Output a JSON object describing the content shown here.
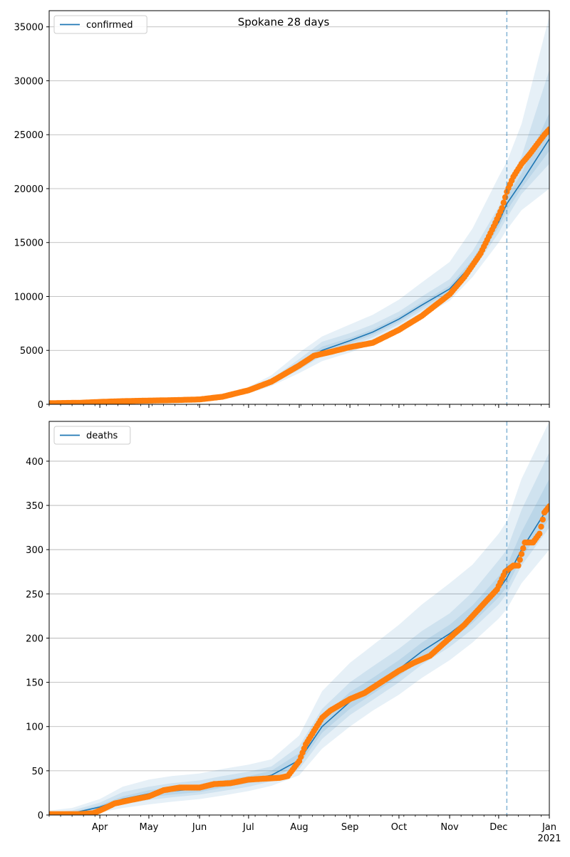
{
  "figure": {
    "title": "Spokane 28 days"
  },
  "colors": {
    "model": "#1f77b4",
    "observed": "#ff7f0e",
    "band": "#1f77b4",
    "grid": "#b0b0b0",
    "cutoff": "#1f77b4"
  },
  "chart_data": [
    {
      "type": "line",
      "legend": "confirmed",
      "legend_position": "top-left",
      "grid": "y",
      "ylim": [
        0,
        36500
      ],
      "yticks": [
        0,
        5000,
        10000,
        15000,
        20000,
        25000,
        30000,
        35000
      ],
      "xlim": [
        "2020-03-01",
        "2021-01-01"
      ],
      "xticks": [
        {
          "date": "2020-04-01",
          "label": "Apr"
        },
        {
          "date": "2020-05-01",
          "label": "May"
        },
        {
          "date": "2020-06-01",
          "label": "Jun"
        },
        {
          "date": "2020-07-01",
          "label": "Jul"
        },
        {
          "date": "2020-08-01",
          "label": "Aug"
        },
        {
          "date": "2020-09-01",
          "label": "Sep"
        },
        {
          "date": "2020-10-01",
          "label": "Oct"
        },
        {
          "date": "2020-11-01",
          "label": "Nov"
        },
        {
          "date": "2020-12-01",
          "label": "Dec"
        },
        {
          "date": "2021-01-01",
          "label": "Jan\n2021"
        }
      ],
      "cutoff_date": "2020-12-06",
      "model": {
        "dates": [
          "2020-03-01",
          "2020-03-15",
          "2020-04-01",
          "2020-04-15",
          "2020-05-01",
          "2020-05-15",
          "2020-06-01",
          "2020-06-15",
          "2020-07-01",
          "2020-07-15",
          "2020-08-01",
          "2020-08-15",
          "2020-09-01",
          "2020-09-15",
          "2020-10-01",
          "2020-10-15",
          "2020-11-01",
          "2020-11-15",
          "2020-12-01",
          "2020-12-06",
          "2020-12-15",
          "2021-01-01"
        ],
        "values": [
          80,
          100,
          180,
          250,
          320,
          370,
          430,
          650,
          1200,
          2000,
          3500,
          5000,
          5900,
          6700,
          7900,
          9200,
          10700,
          13000,
          16900,
          18600,
          20600,
          24600
        ],
        "bands": [
          {
            "lower": [
              60,
              70,
              150,
              210,
              260,
              300,
              350,
              550,
              1000,
              1700,
              2900,
              4000,
              4800,
              5600,
              6800,
              8100,
              9600,
              11800,
              15000,
              16200,
              18000,
              20000
            ],
            "upper": [
              110,
              140,
              230,
              320,
              410,
              470,
              560,
              850,
              1600,
              2700,
              4800,
              6300,
              7400,
              8300,
              9700,
              11300,
              13200,
              16300,
              21100,
              22500,
              26000,
              36000
            ]
          },
          {
            "lower": [
              70,
              85,
              160,
              230,
              290,
              330,
              390,
              600,
              1100,
              1850,
              3200,
              4500,
              5400,
              6200,
              7400,
              8700,
              10100,
              12400,
              15900,
              17300,
              19500,
              22300
            ],
            "upper": [
              95,
              120,
              210,
              290,
              370,
              430,
              510,
              760,
              1400,
              2350,
              4200,
              5800,
              6600,
              7400,
              8600,
              10000,
              11600,
              14200,
              18300,
              20100,
              23000,
              31000
            ]
          },
          {
            "lower": [
              75,
              90,
              170,
              240,
              305,
              350,
              410,
              625,
              1150,
              1920,
              3350,
              4750,
              5650,
              6450,
              7650,
              8950,
              10400,
              12700,
              16400,
              17950,
              20050,
              23500
            ],
            "upper": [
              88,
              110,
              195,
              270,
              345,
              400,
              470,
              700,
              1300,
              2150,
              3850,
              5350,
              6150,
              6950,
              8150,
              9450,
              11000,
              13400,
              17400,
              19250,
              21400,
              27000
            ]
          }
        ]
      },
      "observed": {
        "dates": [
          "2020-03-01",
          "2020-03-20",
          "2020-04-01",
          "2020-04-15",
          "2020-05-01",
          "2020-05-15",
          "2020-06-01",
          "2020-06-15",
          "2020-07-01",
          "2020-07-15",
          "2020-08-01",
          "2020-08-10",
          "2020-08-20",
          "2020-09-01",
          "2020-09-15",
          "2020-10-01",
          "2020-10-15",
          "2020-11-01",
          "2020-11-10",
          "2020-11-20",
          "2020-11-28",
          "2020-12-03",
          "2020-12-06",
          "2020-12-10",
          "2020-12-15",
          "2020-12-20",
          "2020-12-25",
          "2020-12-29",
          "2021-01-01"
        ],
        "values": [
          100,
          140,
          220,
          290,
          340,
          380,
          450,
          700,
          1300,
          2100,
          3600,
          4500,
          4850,
          5300,
          5700,
          6900,
          8200,
          10200,
          11800,
          14000,
          16500,
          18200,
          19700,
          21100,
          22300,
          23200,
          24200,
          25000,
          25500
        ]
      }
    },
    {
      "type": "line",
      "legend": "deaths",
      "legend_position": "top-left",
      "grid": "y",
      "ylim": [
        0,
        445
      ],
      "yticks": [
        0,
        50,
        100,
        150,
        200,
        250,
        300,
        350,
        400
      ],
      "xlim": [
        "2020-03-01",
        "2021-01-01"
      ],
      "xticks": [
        {
          "date": "2020-04-01",
          "label": "Apr"
        },
        {
          "date": "2020-05-01",
          "label": "May"
        },
        {
          "date": "2020-06-01",
          "label": "Jun"
        },
        {
          "date": "2020-07-01",
          "label": "Jul"
        },
        {
          "date": "2020-08-01",
          "label": "Aug"
        },
        {
          "date": "2020-09-01",
          "label": "Sep"
        },
        {
          "date": "2020-10-01",
          "label": "Oct"
        },
        {
          "date": "2020-11-01",
          "label": "Nov"
        },
        {
          "date": "2020-12-01",
          "label": "Dec"
        },
        {
          "date": "2021-01-01",
          "label": "Jan\n2021"
        }
      ],
      "cutoff_date": "2020-12-06",
      "model": {
        "dates": [
          "2020-03-01",
          "2020-03-15",
          "2020-04-01",
          "2020-04-15",
          "2020-05-01",
          "2020-05-15",
          "2020-06-01",
          "2020-06-15",
          "2020-07-01",
          "2020-07-15",
          "2020-08-01",
          "2020-08-15",
          "2020-09-01",
          "2020-09-15",
          "2020-10-01",
          "2020-10-15",
          "2020-11-01",
          "2020-11-15",
          "2020-12-01",
          "2020-12-06",
          "2020-12-15",
          "2021-01-01"
        ],
        "values": [
          1,
          2,
          9,
          18,
          24,
          27,
          30,
          35,
          40,
          45,
          62,
          100,
          128,
          145,
          165,
          185,
          205,
          225,
          255,
          268,
          300,
          350
        ],
        "bands": [
          {
            "lower": [
              0,
              0,
              3,
              8,
              12,
              15,
              18,
              22,
              27,
              33,
              45,
              75,
              100,
              118,
              136,
              155,
              175,
              195,
              222,
              233,
              262,
              300
            ],
            "upper": [
              5,
              8,
              18,
              32,
              40,
              44,
              47,
              52,
              57,
              63,
              90,
              140,
              172,
              192,
              215,
              238,
              262,
              283,
              318,
              332,
              380,
              445
            ]
          },
          {
            "lower": [
              0,
              1,
              5,
              12,
              17,
              20,
              23,
              27,
              32,
              38,
              52,
              86,
              113,
              130,
              150,
              170,
              190,
              210,
              238,
              250,
              282,
              325
            ],
            "upper": [
              3,
              5,
              14,
              26,
              32,
              36,
              39,
              44,
              49,
              55,
              78,
              120,
              150,
              168,
              188,
              208,
              228,
              252,
              288,
              300,
              345,
              410
            ]
          },
          {
            "lower": [
              0,
              1,
              7,
              15,
              20,
              23,
              26,
              31,
              36,
              41,
              57,
              93,
              120,
              137,
              157,
              177,
              197,
              217,
              246,
              258,
              291,
              335
            ],
            "upper": [
              2,
              3,
              11,
              21,
              28,
              31,
              34,
              39,
              44,
              50,
              70,
              110,
              139,
              155,
              175,
              195,
              215,
              237,
              270,
              282,
              320,
              380
            ]
          }
        ]
      },
      "observed": {
        "dates": [
          "2020-03-01",
          "2020-03-20",
          "2020-03-28",
          "2020-04-01",
          "2020-04-10",
          "2020-04-20",
          "2020-05-01",
          "2020-05-10",
          "2020-05-20",
          "2020-06-01",
          "2020-06-10",
          "2020-06-20",
          "2020-07-01",
          "2020-07-10",
          "2020-07-20",
          "2020-07-25",
          "2020-08-01",
          "2020-08-05",
          "2020-08-10",
          "2020-08-15",
          "2020-08-20",
          "2020-09-01",
          "2020-09-10",
          "2020-09-20",
          "2020-10-01",
          "2020-10-10",
          "2020-10-20",
          "2020-11-01",
          "2020-11-10",
          "2020-11-20",
          "2020-11-30",
          "2020-12-05",
          "2020-12-10",
          "2020-12-13",
          "2020-12-17",
          "2020-12-22",
          "2020-12-26",
          "2020-12-29",
          "2021-01-01"
        ],
        "values": [
          1,
          1,
          2,
          5,
          13,
          17,
          21,
          28,
          31,
          31,
          35,
          36,
          40,
          41,
          42,
          44,
          61,
          80,
          95,
          110,
          118,
          131,
          138,
          150,
          163,
          172,
          180,
          200,
          215,
          235,
          255,
          275,
          282,
          282,
          308,
          308,
          318,
          342,
          349
        ]
      }
    }
  ]
}
